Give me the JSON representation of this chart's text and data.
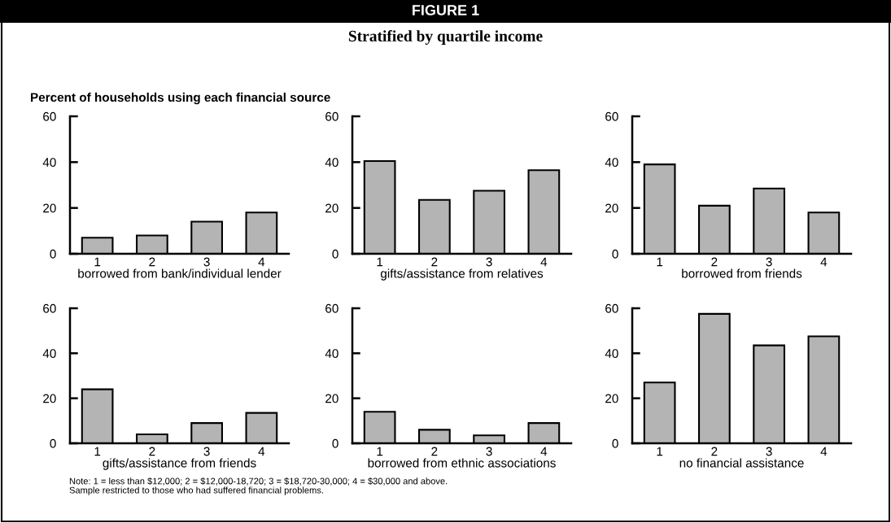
{
  "chart_data": [
    {
      "type": "other",
      "title": "FIGURE 1",
      "subtitle": "Stratified by quartile income"
    },
    {
      "type": "bar",
      "ylabel": "Percent of households using each financial source",
      "xlabel": "borrowed from bank/individual lender",
      "categories": [
        "1",
        "2",
        "3",
        "4"
      ],
      "values": [
        7,
        8,
        14,
        18
      ],
      "color": "#b4b4b4",
      "ylim": [
        0,
        60
      ],
      "yticks": [
        0,
        20,
        40,
        60
      ],
      "annotations": [
        "Note: 1 = less than $12,000; 2 = $12,000-18,720; 3 = $18,720-30,000; 4 = $30,000 and above.\nSample restricted to those who had suffered financial problems."
      ]
    },
    {
      "type": "bar",
      "xlabel": "gifts/assistance from relatives",
      "categories": [
        "1",
        "2",
        "3",
        "4"
      ],
      "values": [
        40.5,
        23.5,
        27.5,
        36.5
      ],
      "color": "#b4b4b4",
      "ylim": [
        0,
        60
      ],
      "yticks": [
        0,
        20,
        40,
        60
      ]
    },
    {
      "type": "bar",
      "xlabel": "borrowed from friends",
      "categories": [
        "1",
        "2",
        "3",
        "4"
      ],
      "values": [
        39,
        21,
        28.5,
        18
      ],
      "color": "#b4b4b4",
      "ylim": [
        0,
        60
      ],
      "yticks": [
        0,
        20,
        40,
        60
      ]
    },
    {
      "type": "bar",
      "xlabel": "gifts/assistance from friends",
      "categories": [
        "1",
        "2",
        "3",
        "4"
      ],
      "values": [
        24,
        4,
        9,
        13.5
      ],
      "color": "#b4b4b4",
      "ylim": [
        0,
        60
      ],
      "yticks": [
        0,
        20,
        40,
        60
      ]
    },
    {
      "type": "bar",
      "xlabel": "borrowed from ethnic associations",
      "categories": [
        "1",
        "2",
        "3",
        "4"
      ],
      "values": [
        14,
        6,
        3.5,
        9
      ],
      "color": "#b4b4b4",
      "ylim": [
        0,
        60
      ],
      "yticks": [
        0,
        20,
        40,
        60
      ]
    },
    {
      "type": "bar",
      "xlabel": "no financial assistance",
      "categories": [
        "1",
        "2",
        "3",
        "4"
      ],
      "values": [
        27,
        57.5,
        43.5,
        47.5
      ],
      "color": "#b4b4b4",
      "ylim": [
        0,
        60
      ],
      "yticks": [
        0,
        20,
        40,
        60
      ]
    }
  ]
}
